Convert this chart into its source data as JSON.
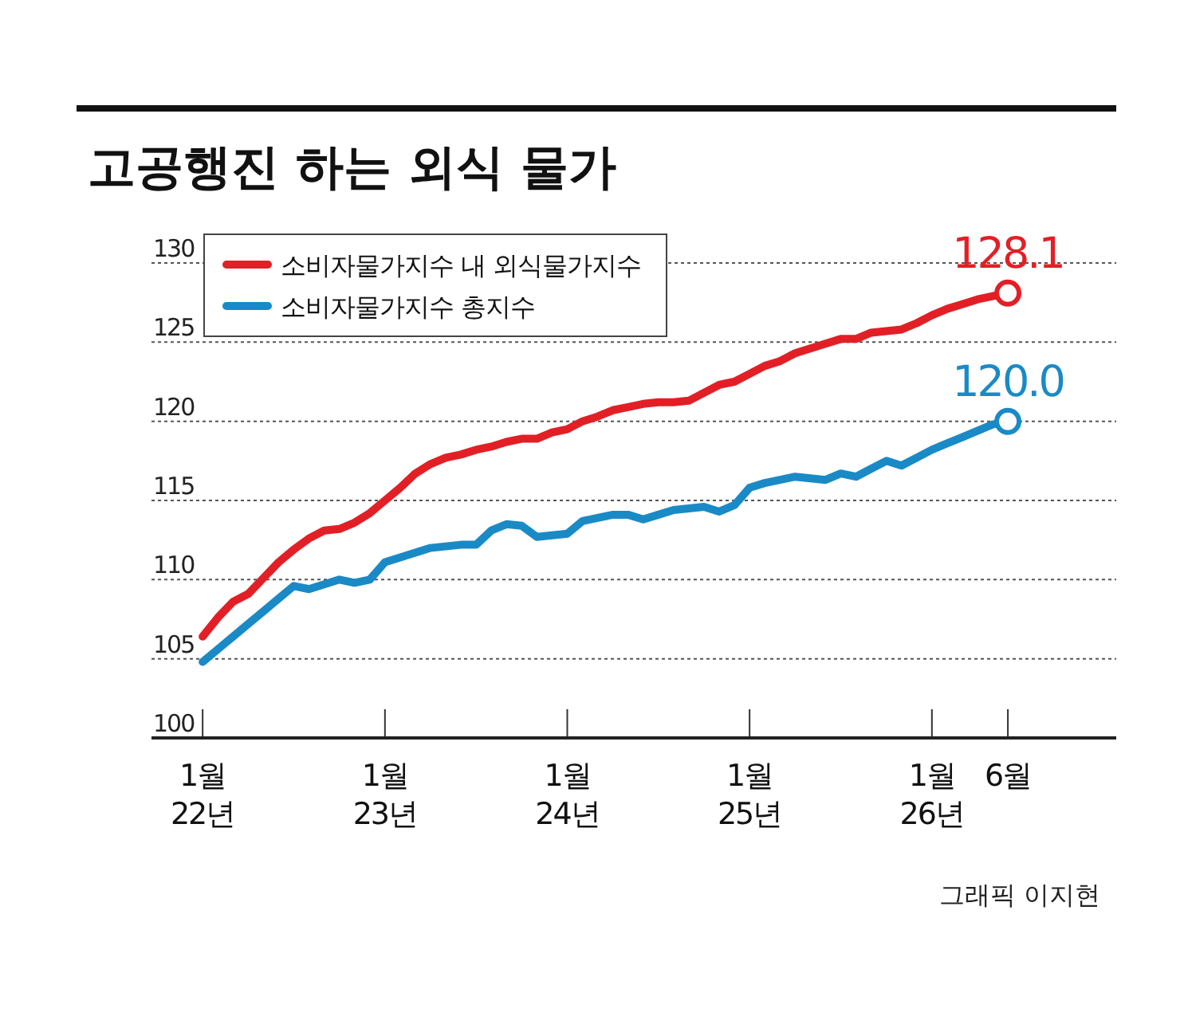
{
  "chart_data": {
    "type": "line",
    "title": "고공행진 하는 외식 물가",
    "x": [
      "2022-01",
      "2022-02",
      "2022-03",
      "2022-04",
      "2022-05",
      "2022-06",
      "2022-07",
      "2022-08",
      "2022-09",
      "2022-10",
      "2022-11",
      "2022-12",
      "2023-01",
      "2023-02",
      "2023-03",
      "2023-04",
      "2023-05",
      "2023-06",
      "2023-07",
      "2023-08",
      "2023-09",
      "2023-10",
      "2023-11",
      "2023-12",
      "2024-01",
      "2024-02",
      "2024-03",
      "2024-04",
      "2024-05",
      "2024-06",
      "2024-07",
      "2024-08",
      "2024-09",
      "2024-10",
      "2024-11",
      "2024-12",
      "2025-01",
      "2025-02",
      "2025-03",
      "2025-04",
      "2025-05",
      "2025-06",
      "2025-07",
      "2025-08",
      "2025-09",
      "2025-10",
      "2025-11",
      "2025-12",
      "2026-01",
      "2026-02",
      "2026-03",
      "2026-04",
      "2026-05",
      "2026-06"
    ],
    "series": [
      {
        "name": "소비자물가지수 내 외식물가지수",
        "color": "#e31f26",
        "values": [
          106.4,
          107.6,
          108.6,
          109.1,
          110.1,
          111.1,
          111.9,
          112.6,
          113.1,
          113.2,
          113.6,
          114.2,
          115.0,
          115.8,
          116.7,
          117.3,
          117.7,
          117.9,
          118.2,
          118.4,
          118.7,
          118.9,
          118.9,
          119.3,
          119.5,
          120.0,
          120.3,
          120.7,
          120.9,
          121.1,
          121.2,
          121.2,
          121.3,
          121.8,
          122.3,
          122.5,
          123.0,
          123.5,
          123.8,
          124.3,
          124.6,
          124.9,
          125.2,
          125.2,
          125.6,
          125.7,
          125.8,
          126.2,
          126.7,
          127.1,
          127.4,
          127.7,
          127.9,
          128.1
        ],
        "value_labels": [
          null,
          null,
          null,
          null,
          null,
          null,
          null,
          null,
          null,
          null,
          null,
          null,
          null,
          null,
          null,
          null,
          null,
          null,
          null,
          null,
          null,
          null,
          null,
          null,
          null,
          null,
          null,
          null,
          null,
          null,
          null,
          null,
          null,
          null,
          null,
          null,
          null,
          null,
          null,
          null,
          null,
          null,
          null,
          null,
          null,
          null,
          null,
          null,
          null,
          null,
          null,
          null,
          null,
          "128.1"
        ]
      },
      {
        "name": "소비자물가지수 총지수",
        "color": "#1a8ac6",
        "values": [
          104.8,
          105.6,
          106.4,
          107.2,
          108.0,
          108.8,
          109.6,
          109.4,
          109.7,
          110.0,
          109.8,
          110.0,
          111.1,
          111.4,
          111.7,
          112.0,
          112.1,
          112.2,
          112.2,
          113.1,
          113.5,
          113.4,
          112.7,
          112.8,
          112.9,
          113.7,
          113.9,
          114.1,
          114.1,
          113.8,
          114.1,
          114.4,
          114.5,
          114.6,
          114.3,
          114.7,
          115.8,
          116.1,
          116.3,
          116.5,
          116.4,
          116.3,
          116.7,
          116.5,
          117.0,
          117.5,
          117.2,
          117.7,
          118.2,
          118.6,
          119.0,
          119.4,
          119.8,
          120.0
        ],
        "value_labels": [
          null,
          null,
          null,
          null,
          null,
          null,
          null,
          null,
          null,
          null,
          null,
          null,
          null,
          null,
          null,
          null,
          null,
          null,
          null,
          null,
          null,
          null,
          null,
          null,
          null,
          null,
          null,
          null,
          null,
          null,
          null,
          null,
          null,
          null,
          null,
          null,
          null,
          null,
          null,
          null,
          null,
          null,
          null,
          null,
          null,
          null,
          null,
          null,
          null,
          null,
          null,
          null,
          null,
          "120.0"
        ]
      }
    ],
    "xlim": [
      "2021-09-20",
      "2027-01-05"
    ],
    "xticks": [
      {
        "value": "2022-01",
        "label": "1월\n22년"
      },
      {
        "value": "2023-01",
        "label": "1월\n23년"
      },
      {
        "value": "2024-01",
        "label": "1월\n24년"
      },
      {
        "value": "2025-01",
        "label": "1월\n25년"
      },
      {
        "value": "2026-01",
        "label": "1월\n26년"
      },
      {
        "value": "2026-06",
        "label": "6월"
      }
    ],
    "ylim": [
      100,
      130
    ],
    "yticks": [
      100,
      105,
      110,
      115,
      120,
      125,
      130
    ],
    "grid": "y",
    "legend": "top left",
    "line_style": "solid",
    "marker": "none",
    "annotations": [
      "그래픽 이지현"
    ]
  }
}
